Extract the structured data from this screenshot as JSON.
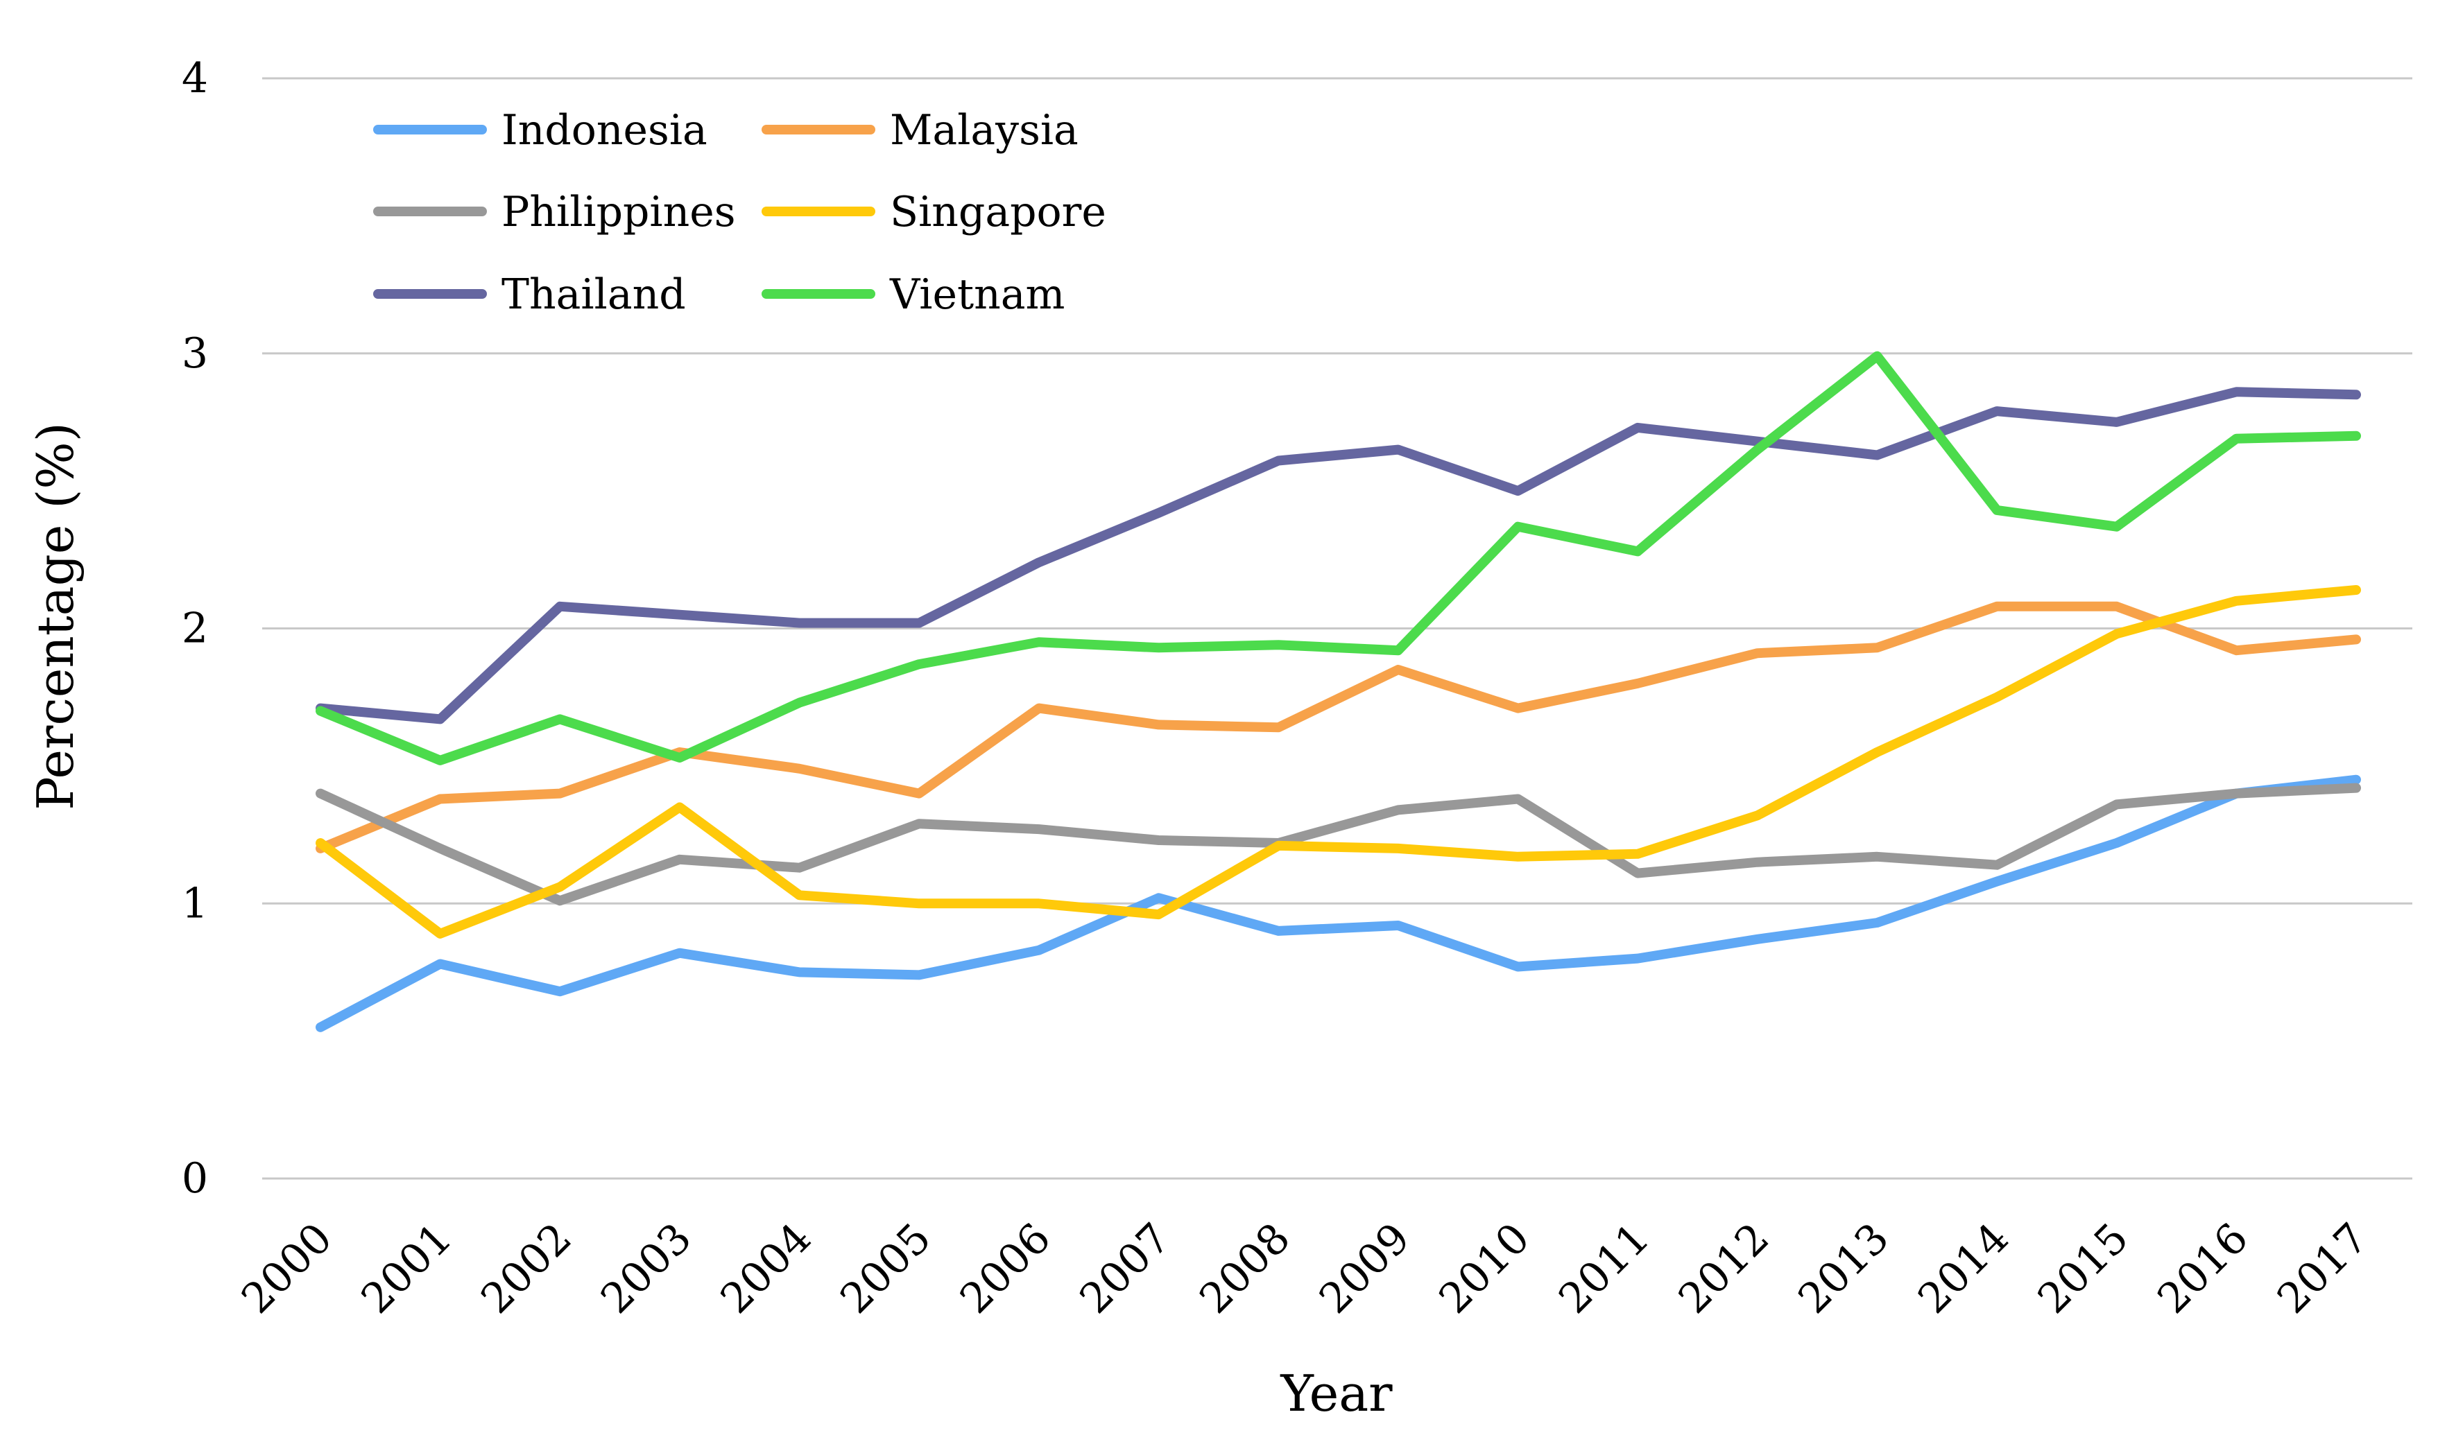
{
  "chart_data": {
    "type": "line",
    "title": "",
    "xlabel": "Year",
    "ylabel": "Percentage (%)",
    "ylim": [
      0,
      4
    ],
    "yticks": [
      "0",
      "1",
      "2",
      "3",
      "4"
    ],
    "grid": true,
    "legend_position": "top-left",
    "categories": [
      "2000",
      "2001",
      "2002",
      "2003",
      "2004",
      "2005",
      "2006",
      "2007",
      "2008",
      "2009",
      "2010",
      "2011",
      "2012",
      "2013",
      "2014",
      "2015",
      "2016",
      "2017"
    ],
    "series": [
      {
        "name": "Indonesia",
        "color": "#5fa8f5",
        "values": [
          0.55,
          0.78,
          0.68,
          0.82,
          0.75,
          0.74,
          0.83,
          1.02,
          0.9,
          0.92,
          0.77,
          0.8,
          0.87,
          0.93,
          1.08,
          1.22,
          1.4,
          1.45
        ]
      },
      {
        "name": "Malaysia",
        "color": "#f7a24a",
        "values": [
          1.2,
          1.38,
          1.4,
          1.55,
          1.49,
          1.4,
          1.71,
          1.65,
          1.64,
          1.85,
          1.71,
          1.8,
          1.91,
          1.93,
          2.08,
          2.08,
          1.92,
          1.96
        ]
      },
      {
        "name": "Philippines",
        "color": "#989898",
        "values": [
          1.4,
          1.2,
          1.01,
          1.16,
          1.13,
          1.29,
          1.27,
          1.23,
          1.22,
          1.34,
          1.38,
          1.11,
          1.15,
          1.17,
          1.14,
          1.36,
          1.4,
          1.42
        ]
      },
      {
        "name": "Singapore",
        "color": "#ffc90a",
        "values": [
          1.22,
          0.89,
          1.06,
          1.35,
          1.03,
          1.0,
          1.0,
          0.96,
          1.21,
          1.2,
          1.17,
          1.18,
          1.32,
          1.55,
          1.75,
          1.98,
          2.1,
          2.14
        ]
      },
      {
        "name": "Thailand",
        "color": "#6566a0",
        "values": [
          1.71,
          1.67,
          2.08,
          2.05,
          2.02,
          2.02,
          2.24,
          2.42,
          2.61,
          2.65,
          2.5,
          2.73,
          2.68,
          2.63,
          2.79,
          2.75,
          2.86,
          2.85
        ]
      },
      {
        "name": "Vietnam",
        "color": "#4cdb4c",
        "values": [
          1.7,
          1.52,
          1.67,
          1.53,
          1.73,
          1.87,
          1.95,
          1.93,
          1.94,
          1.92,
          2.37,
          2.28,
          2.65,
          2.99,
          2.43,
          2.37,
          2.69,
          2.7
        ]
      }
    ]
  }
}
